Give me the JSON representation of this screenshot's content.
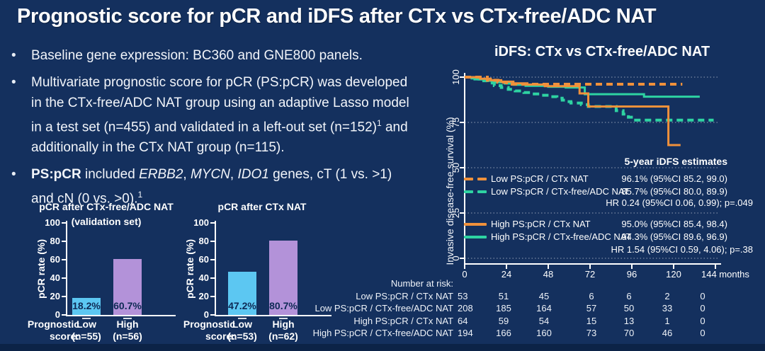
{
  "title": "Prognostic score for pCR and iDFS after CTx vs CTx-free/ADC NAT",
  "bullet_marker": "•",
  "colors": {
    "background": "#14305e",
    "footer_strip": "#0c2347",
    "orange": "#f0913b",
    "green": "#2ed3a2",
    "cyan_bar": "#5cc7f2",
    "purple_bar": "#b392d9",
    "bar_value_text": "#0e2a55",
    "text": "#ffffff"
  },
  "bullets": [
    {
      "lines": [
        [
          {
            "t": "Baseline gene expression: BC360 and GNE800 panels."
          }
        ]
      ]
    },
    {
      "lines": [
        [
          {
            "t": "Multivariate prognostic score for pCR (PS:pCR) was developed"
          }
        ],
        [
          {
            "t": "in the CTx-free/ADC NAT group using an adaptive Lasso model"
          }
        ],
        [
          {
            "t": "in a test set (n=455) and validated in a left-out set (n=152)"
          },
          {
            "t": "1",
            "s": "sup"
          },
          {
            "t": " and"
          }
        ],
        [
          {
            "t": "additionally in the CTx NAT group (n=115)."
          }
        ]
      ]
    },
    {
      "lines": [
        [
          {
            "t": "PS:pCR",
            "s": "b"
          },
          {
            "t": " included "
          },
          {
            "t": "ERBB2",
            "s": "i"
          },
          {
            "t": ", "
          },
          {
            "t": "MYCN",
            "s": "i"
          },
          {
            "t": ", "
          },
          {
            "t": "IDO1",
            "s": "i"
          },
          {
            "t": " genes, cT (1 vs. >1)"
          }
        ],
        [
          {
            "t": "and cN (0 vs. >0)."
          },
          {
            "t": "1",
            "s": "sup"
          }
        ]
      ]
    }
  ],
  "chart_data": [
    {
      "type": "bar",
      "title": "pCR after CTx-free/ADC NAT",
      "subtitle": "(validation set)",
      "ylabel": "pCR rate (%)",
      "ylim": [
        0,
        100
      ],
      "yticks": [
        0,
        20,
        40,
        60,
        80,
        100
      ],
      "group_label": [
        "Prognostic",
        "score:"
      ],
      "categories": [
        [
          "Low",
          "(n=55)"
        ],
        [
          "High",
          "(n=56)"
        ]
      ],
      "values": [
        18.2,
        60.7
      ],
      "value_labels": [
        "18.2%",
        "60.7%"
      ],
      "bar_colors": [
        "#5cc7f2",
        "#b392d9"
      ]
    },
    {
      "type": "bar",
      "title": "pCR after CTx NAT",
      "subtitle": "",
      "ylabel": "pCR rate (%)",
      "ylim": [
        0,
        100
      ],
      "yticks": [
        0,
        20,
        40,
        60,
        80,
        100
      ],
      "group_label": [
        "Prognostic",
        "score:"
      ],
      "categories": [
        [
          "Low",
          "(n=53)"
        ],
        [
          "High",
          "(n=62)"
        ]
      ],
      "values": [
        47.2,
        80.7
      ],
      "value_labels": [
        "47.2%",
        "80.7%"
      ],
      "bar_colors": [
        "#5cc7f2",
        "#b392d9"
      ]
    },
    {
      "type": "line",
      "title": "iDFS: CTx vs CTx-free/ADC NAT",
      "ylabel": "Invasive disease-free survival (%)",
      "xlabel_unit": "months",
      "xlim": [
        0,
        150
      ],
      "ylim": [
        0,
        100
      ],
      "xticks": [
        0,
        24,
        48,
        72,
        96,
        120,
        144
      ],
      "yticks": [
        0,
        25,
        50,
        75,
        100
      ],
      "grid": "horizontal-dotted",
      "series": [
        {
          "name": "Low PS:pCR / CTx-free/ADC NAT",
          "color": "#2ed3a2",
          "style": "dashed",
          "steps": [
            [
              0,
              100
            ],
            [
              5,
              99.0
            ],
            [
              9,
              98.0
            ],
            [
              13,
              96.8
            ],
            [
              17,
              95.3
            ],
            [
              21,
              94.3
            ],
            [
              25,
              93.3
            ],
            [
              29,
              92.4
            ],
            [
              34,
              91.5
            ],
            [
              39,
              90.7
            ],
            [
              44,
              90.0
            ],
            [
              49,
              89.2
            ],
            [
              53,
              88.4
            ],
            [
              56,
              87.3
            ],
            [
              59,
              86.5
            ],
            [
              61,
              85.7
            ],
            [
              67,
              84.8
            ],
            [
              71,
              83.8
            ],
            [
              87,
              81.5
            ],
            [
              91,
              79.6
            ],
            [
              94,
              77.9
            ],
            [
              97,
              76.3
            ],
            [
              143,
              76.3
            ]
          ]
        },
        {
          "name": "High PS:pCR / CTx-free/ADC NAT",
          "color": "#2ed3a2",
          "style": "solid",
          "steps": [
            [
              0,
              100
            ],
            [
              4,
              99.3
            ],
            [
              8,
              98.7
            ],
            [
              13,
              98.0
            ],
            [
              18,
              97.2
            ],
            [
              23,
              96.5
            ],
            [
              28,
              95.8
            ],
            [
              35,
              95.2
            ],
            [
              48,
              94.7
            ],
            [
              58,
              94.3
            ],
            [
              69,
              90.6
            ],
            [
              103,
              89.2
            ],
            [
              135,
              89.2
            ]
          ]
        },
        {
          "name": "High PS:pCR / CTx NAT",
          "color": "#f0913b",
          "style": "solid",
          "steps": [
            [
              0,
              100
            ],
            [
              9,
              99.1
            ],
            [
              15,
              98.3
            ],
            [
              21,
              97.5
            ],
            [
              28,
              96.6
            ],
            [
              36,
              95.9
            ],
            [
              46,
              95.0
            ],
            [
              66,
              91.0
            ],
            [
              71,
              83.8
            ],
            [
              117,
              62.5
            ],
            [
              124,
              62.5
            ]
          ]
        },
        {
          "name": "Low PS:pCR / CTx NAT",
          "color": "#f0913b",
          "style": "dashed",
          "steps": [
            [
              0,
              100
            ],
            [
              13,
              98.3
            ],
            [
              19,
              97.2
            ],
            [
              24,
              96.1
            ],
            [
              125,
              96.1
            ]
          ]
        }
      ],
      "legend": {
        "header": "5-year iDFS estimates",
        "entries": [
          {
            "label": "Low PS:pCR / CTx NAT",
            "estimate": "96.1% (95%CI 85.2, 99.0)",
            "color": "#f0913b",
            "style": "dashed"
          },
          {
            "label": "Low PS:pCR / CTx-free/ADC NAT",
            "estimate": "85.7% (95%CI 80.0, 89.9)",
            "color": "#2ed3a2",
            "style": "dashed"
          },
          {
            "label": "High PS:pCR / CTx NAT",
            "estimate": "95.0% (95%CI 85.4, 98.4)",
            "color": "#f0913b",
            "style": "solid"
          },
          {
            "label": "High PS:pCR / CTx-free/ADC NAT",
            "estimate": "94.3% (95%CI 89.6, 96.9)",
            "color": "#2ed3a2",
            "style": "solid"
          }
        ],
        "hr_lines": [
          "HR 0.24 (95%CI 0.06, 0.99); p=.049",
          "HR 1.54 (95%CI 0.59, 4.06); p=.38"
        ]
      },
      "number_at_risk": {
        "label": "Number at risk:",
        "rows": [
          {
            "label": "Low PS:pCR / CTx NAT",
            "values": [
              "53",
              "51",
              "45",
              "6",
              "6",
              "2",
              "0"
            ]
          },
          {
            "label": "Low PS:pCR / CTx-free/ADC NAT",
            "values": [
              "208",
              "185",
              "164",
              "57",
              "50",
              "33",
              "0"
            ]
          },
          {
            "label": "High PS:pCR / CTx NAT",
            "values": [
              "64",
              "59",
              "54",
              "15",
              "13",
              "1",
              "0"
            ]
          },
          {
            "label": "High PS:pCR / CTx-free/ADC NAT",
            "values": [
              "194",
              "166",
              "160",
              "73",
              "70",
              "46",
              "0"
            ]
          }
        ]
      }
    }
  ]
}
